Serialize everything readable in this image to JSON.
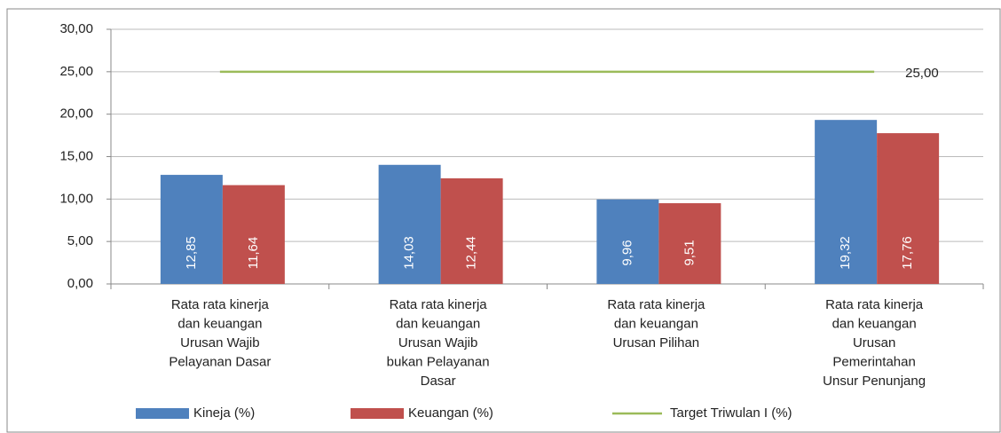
{
  "chart_data": {
    "type": "bar",
    "categories": [
      [
        "Rata    rata kinerja",
        "dan keuangan",
        "Urusan Wajib",
        "Pelayanan Dasar"
      ],
      [
        "Rata    rata  kinerja",
        "dan keuangan",
        "Urusan Wajib",
        "bukan Pelayanan",
        "Dasar"
      ],
      [
        "Rata    rata kinerja",
        "dan keuangan",
        "Urusan Pilihan"
      ],
      [
        "Rata    rata kinerja",
        "dan keuangan",
        "Urusan",
        "Pemerintahan",
        "Unsur Penunjang"
      ]
    ],
    "series": [
      {
        "name": "Kineja (%)",
        "color": "#4f81bd",
        "values": [
          12.85,
          14.03,
          9.96,
          19.32
        ],
        "value_labels": [
          "12,85",
          "14,03",
          "9,96",
          "19,32"
        ]
      },
      {
        "name": "Keuangan (%)",
        "color": "#c0504d",
        "values": [
          11.64,
          12.44,
          9.51,
          17.76
        ],
        "value_labels": [
          "11,64",
          "12,44",
          "9,51",
          "17,76"
        ]
      },
      {
        "name": "Target Triwulan I (%)",
        "color": "#9bbb59",
        "type": "line",
        "values": [
          25,
          25,
          25,
          25
        ],
        "value_labels": [
          null,
          null,
          null,
          "25,00"
        ]
      }
    ],
    "ylim": [
      0,
      30
    ],
    "yticks": [
      {
        "value": 0,
        "label": "0,00"
      },
      {
        "value": 5,
        "label": "5,00"
      },
      {
        "value": 10,
        "label": "10,00"
      },
      {
        "value": 15,
        "label": "15,00"
      },
      {
        "value": 20,
        "label": "20,00"
      },
      {
        "value": 25,
        "label": "25,00"
      },
      {
        "value": 30,
        "label": "30,00"
      }
    ],
    "grid": true,
    "legend": "bottom"
  }
}
